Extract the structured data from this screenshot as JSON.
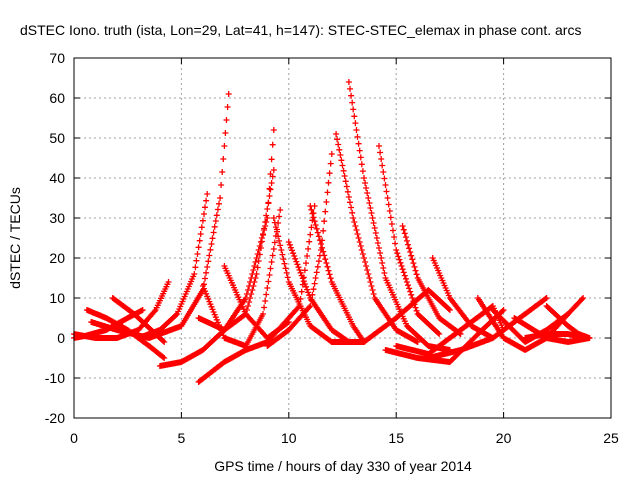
{
  "chart_data": {
    "type": "scatter",
    "title": "dSTEC Iono. truth (ista, Lon=29, Lat=41, h=147): STEC-STEC_elemax in phase cont. arcs",
    "xlabel": "GPS time / hours of day 330 of year 2014",
    "ylabel": "dSTEC  / TECUs",
    "xlim": [
      0,
      25
    ],
    "ylim": [
      -20,
      70
    ],
    "xticks": [
      0,
      5,
      10,
      15,
      20,
      25
    ],
    "yticks": [
      -20,
      -10,
      0,
      10,
      20,
      30,
      40,
      50,
      60,
      70
    ],
    "grid": true,
    "marker": "+",
    "color": "#ff0000",
    "arcs": [
      {
        "x": [
          0.0,
          1.0,
          2.0,
          3.0,
          3.8,
          4.4
        ],
        "y": [
          1,
          0,
          0,
          2,
          7,
          14
        ]
      },
      {
        "x": [
          0.0,
          0.5,
          1.5,
          2.5,
          3.2
        ],
        "y": [
          0,
          0.5,
          2,
          5,
          7
        ]
      },
      {
        "x": [
          0.6,
          1.5,
          2.5,
          3.5,
          4.2
        ],
        "y": [
          7,
          5,
          2,
          -2,
          -5
        ]
      },
      {
        "x": [
          1.8,
          2.8,
          3.6,
          4.2
        ],
        "y": [
          10,
          6,
          2,
          -1
        ]
      },
      {
        "x": [
          0.8,
          2.0,
          3.5,
          5.0,
          6.0,
          6.8,
          7.2
        ],
        "y": [
          4,
          2,
          0,
          3,
          12,
          35,
          61
        ]
      },
      {
        "x": [
          3.0,
          4.0,
          4.8,
          5.6,
          6.2
        ],
        "y": [
          0,
          2,
          6,
          16,
          36
        ]
      },
      {
        "x": [
          4.0,
          5.0,
          6.0,
          7.0,
          8.0,
          9.0,
          9.3
        ],
        "y": [
          -7,
          -6,
          -3,
          2,
          10,
          30,
          52
        ]
      },
      {
        "x": [
          5.8,
          7.0,
          8.0,
          9.0,
          10.5,
          11.2
        ],
        "y": [
          -11,
          -6,
          -3,
          -1,
          8,
          33
        ]
      },
      {
        "x": [
          5.8,
          7.0,
          8.0,
          8.5,
          9.3
        ],
        "y": [
          5,
          2,
          6,
          16,
          42
        ]
      },
      {
        "x": [
          7.0,
          8.0,
          9.0,
          10.0
        ],
        "y": [
          18,
          6,
          0,
          4
        ]
      },
      {
        "x": [
          6.0,
          7.0,
          8.0,
          8.8,
          9.6
        ],
        "y": [
          13,
          0,
          -2,
          6,
          32
        ]
      },
      {
        "x": [
          9.0,
          10.0,
          11.0,
          11.5,
          12.0
        ],
        "y": [
          -2,
          2,
          8,
          22,
          46
        ]
      },
      {
        "x": [
          9.3,
          10.0,
          11.0,
          12.0
        ],
        "y": [
          30,
          14,
          3,
          -1
        ]
      },
      {
        "x": [
          10.0,
          11.0,
          12.0,
          12.8
        ],
        "y": [
          24,
          10,
          2,
          -1
        ]
      },
      {
        "x": [
          11.0,
          12.0,
          13.0,
          13.5
        ],
        "y": [
          33,
          14,
          3,
          -1
        ]
      },
      {
        "x": [
          12.2,
          13.0,
          14.0,
          15.0,
          16.0
        ],
        "y": [
          51,
          30,
          10,
          2,
          -1
        ]
      },
      {
        "x": [
          12.8,
          13.5,
          14.5,
          15.5,
          16.5,
          17.5
        ],
        "y": [
          64,
          40,
          15,
          3,
          -2,
          -3
        ]
      },
      {
        "x": [
          14.2,
          15.0,
          16.0,
          17.0
        ],
        "y": [
          48,
          22,
          6,
          1
        ]
      },
      {
        "x": [
          15.3,
          16.0,
          17.0,
          18.0
        ],
        "y": [
          28,
          15,
          5,
          1
        ]
      },
      {
        "x": [
          16.7,
          17.5,
          18.5,
          19.5
        ],
        "y": [
          20,
          10,
          3,
          0
        ]
      },
      {
        "x": [
          12.0,
          13.5,
          15.0,
          16.5,
          17.5
        ],
        "y": [
          -1,
          -1,
          5,
          12,
          7
        ]
      },
      {
        "x": [
          14.5,
          16.0,
          17.5,
          19.0,
          20.0
        ],
        "y": [
          -3,
          -5,
          -6,
          2,
          7
        ]
      },
      {
        "x": [
          15.0,
          16.5,
          18.0,
          19.5,
          20.0
        ],
        "y": [
          -2,
          -4,
          2,
          8,
          2
        ]
      },
      {
        "x": [
          16.5,
          18.0,
          19.5,
          21.0,
          22.0
        ],
        "y": [
          -5,
          -3,
          0,
          6,
          10
        ]
      },
      {
        "x": [
          18.8,
          20.0,
          21.0,
          22.0,
          23.0
        ],
        "y": [
          10,
          0,
          -3,
          0,
          6
        ]
      },
      {
        "x": [
          19.5,
          21.0,
          22.0,
          23.0,
          23.7
        ],
        "y": [
          7,
          -1,
          2,
          6,
          10
        ]
      },
      {
        "x": [
          20.5,
          22.0,
          23.0,
          24.0
        ],
        "y": [
          5,
          0,
          -1,
          0
        ]
      },
      {
        "x": [
          22.0,
          23.0,
          23.5,
          24.0
        ],
        "y": [
          8,
          3,
          1,
          0
        ]
      },
      {
        "x": [
          21.0,
          22.0,
          23.0,
          23.8
        ],
        "y": [
          0,
          1,
          1,
          0
        ]
      }
    ]
  }
}
